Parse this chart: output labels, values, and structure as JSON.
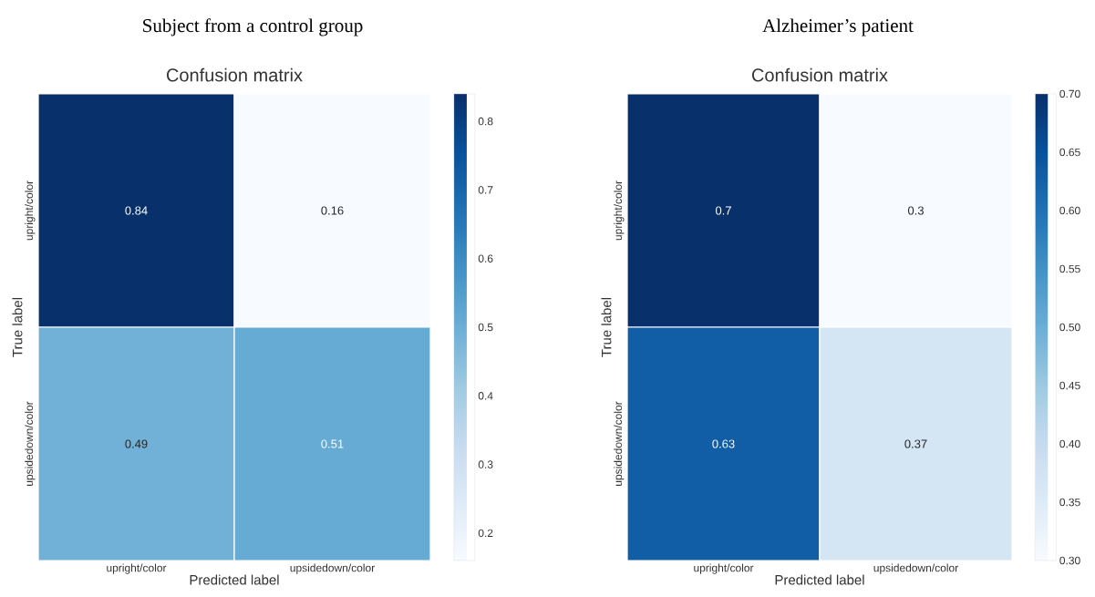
{
  "chart_data": [
    {
      "type": "heatmap",
      "title": "Subject from a control group",
      "subtitle": "Confusion matrix",
      "xlabel": "Predicted label",
      "ylabel": "True label",
      "categories": [
        "upright/color",
        "upsidedown/color"
      ],
      "y_categories": [
        "upright/color",
        "upsidedown/color"
      ],
      "cells": [
        [
          0.84,
          0.16
        ],
        [
          0.49,
          0.51
        ]
      ],
      "data_labels": true,
      "clim": [
        0.16,
        0.84
      ],
      "cticks": [
        0.2,
        0.3,
        0.4,
        0.5,
        0.6,
        0.7,
        0.8
      ]
    },
    {
      "type": "heatmap",
      "title": "Alzheimer’s patient",
      "subtitle": "Confusion matrix",
      "xlabel": "Predicted label",
      "ylabel": "True label",
      "categories": [
        "upright/color",
        "upsidedown/color"
      ],
      "y_categories": [
        "upright/color",
        "upsidedown/color"
      ],
      "cells": [
        [
          0.7,
          0.3
        ],
        [
          0.63,
          0.37
        ]
      ],
      "data_labels": true,
      "clim": [
        0.3,
        0.7
      ],
      "cticks": [
        {
          "value": 0.3,
          "label": "0.30"
        },
        {
          "value": 0.35,
          "label": "0.35"
        },
        {
          "value": 0.4,
          "label": "0.40"
        },
        {
          "value": 0.45,
          "label": "0.45"
        },
        {
          "value": 0.5,
          "label": "0.50"
        },
        {
          "value": 0.55,
          "label": "0.55"
        },
        {
          "value": 0.6,
          "label": "0.60"
        },
        {
          "value": 0.65,
          "label": "0.65"
        },
        {
          "value": 0.7,
          "label": "0.70"
        }
      ]
    }
  ]
}
